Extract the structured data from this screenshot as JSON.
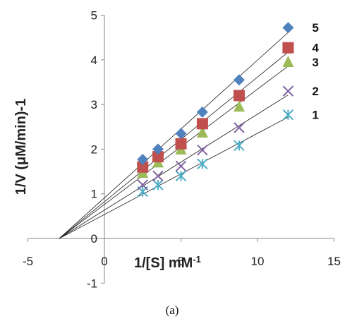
{
  "chart_data": {
    "type": "scatter",
    "xlabel": "1/[S] mM",
    "xlabel_superscript": "-1",
    "ylabel": "1/V (μM/min)-1",
    "xlim": [
      -5,
      15
    ],
    "ylim": [
      -1,
      5
    ],
    "x_ticks": [
      -5,
      0,
      5,
      10,
      15
    ],
    "y_ticks": [
      -1,
      0,
      1,
      2,
      3,
      4,
      5
    ],
    "grid": false,
    "legend": "none",
    "caption": "(a)",
    "x": [
      2.5,
      3.5,
      5.0,
      6.4,
      8.8,
      12.0
    ],
    "trendline_x_intercept": -2.95,
    "series": [
      {
        "name": "1",
        "marker": "asterisk",
        "color": "#4bacc6",
        "values": [
          1.05,
          1.2,
          1.4,
          1.67,
          2.08,
          2.77
        ]
      },
      {
        "name": "2",
        "marker": "x",
        "color": "#8064a2",
        "values": [
          1.2,
          1.4,
          1.62,
          1.98,
          2.48,
          3.3
        ]
      },
      {
        "name": "3",
        "marker": "triangle",
        "color": "#9bbb59",
        "values": [
          1.47,
          1.7,
          1.99,
          2.37,
          2.95,
          3.95
        ]
      },
      {
        "name": "4",
        "marker": "square",
        "color": "#c0504d",
        "values": [
          1.6,
          1.83,
          2.12,
          2.57,
          3.2,
          4.27
        ]
      },
      {
        "name": "5",
        "marker": "diamond",
        "color": "#4f81bd",
        "values": [
          1.77,
          2.0,
          2.35,
          2.83,
          3.55,
          4.72
        ]
      }
    ]
  }
}
